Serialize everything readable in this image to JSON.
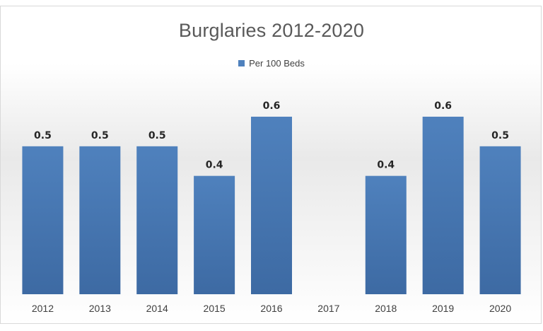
{
  "chart_data": {
    "type": "bar",
    "title": "Burglaries 2012-2020",
    "categories": [
      "2012",
      "2013",
      "2014",
      "2015",
      "2016",
      "2017",
      "2018",
      "2019",
      "2020"
    ],
    "series": [
      {
        "name": "Per 100 Beds",
        "values": [
          0.5,
          0.5,
          0.5,
          0.4,
          0.6,
          null,
          0.4,
          0.6,
          0.5
        ],
        "color": "#4f81bd"
      }
    ],
    "ylim": [
      0,
      0.6
    ],
    "legend_position": "top",
    "grid": false
  }
}
